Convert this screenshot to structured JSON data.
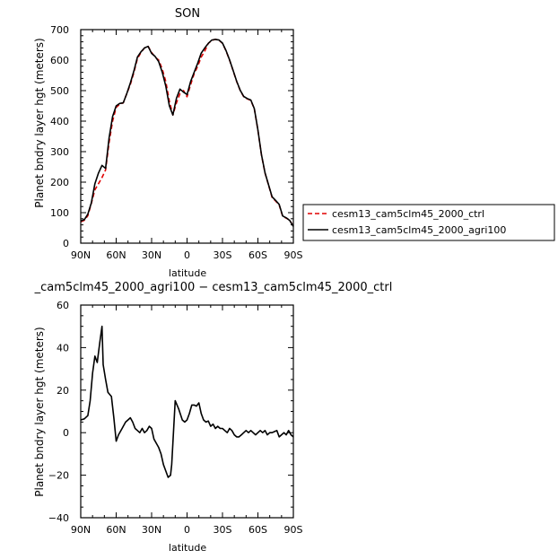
{
  "chart_data": [
    {
      "type": "line",
      "title": "SON",
      "xlabel": "latitude",
      "ylabel": "Planet bndry layer hgt (meters)",
      "xlim": [
        90,
        -90
      ],
      "ylim": [
        0,
        700
      ],
      "x_ticks": [
        90,
        60,
        30,
        0,
        -30,
        -60,
        -90
      ],
      "x_tick_labels": [
        "90N",
        "60N",
        "30N",
        "0",
        "30S",
        "60S",
        "90S"
      ],
      "y_ticks": [
        0,
        100,
        200,
        300,
        400,
        500,
        600,
        700
      ],
      "y_tick_labels": [
        "0",
        "100",
        "200",
        "300",
        "400",
        "500",
        "600",
        "700"
      ],
      "legend_position": "right",
      "series": [
        {
          "name": "cesm13_cam5clm45_2000_ctrl",
          "color": "#e00000",
          "dash": "dashed",
          "x": [
            90,
            87,
            84,
            81,
            78,
            75,
            72,
            69,
            66,
            63,
            60,
            57,
            54,
            51,
            48,
            45,
            42,
            39,
            36,
            33,
            30,
            27,
            24,
            21,
            18,
            15,
            12,
            9,
            6,
            3,
            0,
            -3,
            -6,
            -9,
            -12,
            -15,
            -18,
            -21,
            -24,
            -27,
            -30,
            -33,
            -36,
            -39,
            -42,
            -45,
            -48,
            -51,
            -54,
            -57,
            -60,
            -63,
            -66,
            -69,
            -72,
            -75,
            -78,
            -81,
            -84,
            -87,
            -90
          ],
          "values": [
            70,
            75,
            90,
            130,
            175,
            195,
            215,
            240,
            330,
            400,
            445,
            455,
            460,
            490,
            520,
            560,
            605,
            625,
            640,
            645,
            625,
            610,
            600,
            570,
            530,
            465,
            420,
            460,
            490,
            500,
            480,
            520,
            555,
            580,
            610,
            630,
            655,
            665,
            668,
            665,
            655,
            630,
            600,
            565,
            530,
            500,
            480,
            473,
            468,
            440,
            370,
            290,
            230,
            190,
            150,
            138,
            125,
            88,
            82,
            75,
            55
          ]
        },
        {
          "name": "cesm13_cam5clm45_2000_agri100",
          "color": "#000000",
          "dash": "solid",
          "x": [
            90,
            87,
            84,
            81,
            78,
            75,
            72,
            69,
            66,
            63,
            60,
            57,
            54,
            51,
            48,
            45,
            42,
            39,
            36,
            33,
            30,
            27,
            24,
            21,
            18,
            15,
            12,
            9,
            6,
            3,
            0,
            -3,
            -6,
            -9,
            -12,
            -15,
            -18,
            -21,
            -24,
            -27,
            -30,
            -33,
            -36,
            -39,
            -42,
            -45,
            -48,
            -51,
            -54,
            -57,
            -60,
            -63,
            -66,
            -69,
            -72,
            -75,
            -78,
            -81,
            -84,
            -87,
            -90
          ],
          "values": [
            73,
            77,
            95,
            132,
            195,
            230,
            255,
            245,
            345,
            415,
            450,
            458,
            460,
            490,
            525,
            565,
            610,
            627,
            640,
            645,
            622,
            612,
            595,
            560,
            515,
            450,
            420,
            475,
            505,
            495,
            487,
            530,
            560,
            590,
            623,
            640,
            655,
            666,
            668,
            666,
            656,
            631,
            601,
            566,
            531,
            501,
            481,
            474,
            469,
            441,
            371,
            291,
            231,
            191,
            152,
            140,
            127,
            89,
            83,
            74,
            55
          ]
        }
      ]
    },
    {
      "type": "line",
      "title": "_cam5clm45_2000_agri100 − cesm13_cam5clm45_2000_ctrl",
      "xlabel": "latitude",
      "ylabel": "Planet bndry layer hgt (meters)",
      "xlim": [
        90,
        -90
      ],
      "ylim": [
        -40,
        60
      ],
      "x_ticks": [
        90,
        60,
        30,
        0,
        -30,
        -60,
        -90
      ],
      "x_tick_labels": [
        "90N",
        "60N",
        "30N",
        "0",
        "30S",
        "60S",
        "90S"
      ],
      "y_ticks": [
        -40,
        -20,
        0,
        20,
        40,
        60
      ],
      "y_tick_labels": [
        "−40",
        "−20",
        "0",
        "20",
        "40",
        "60"
      ],
      "series": [
        {
          "color": "#000000",
          "dash": "solid",
          "x": [
            90,
            87,
            84,
            82,
            80,
            78,
            76,
            74,
            72,
            71,
            69,
            67,
            64,
            62,
            60,
            58,
            55,
            52,
            50,
            48,
            46,
            44,
            42,
            40,
            38,
            36,
            34,
            32,
            30,
            28,
            26,
            24,
            22,
            20,
            18,
            16,
            14,
            13,
            12,
            10,
            7,
            4,
            2,
            0,
            -2,
            -4,
            -6,
            -8,
            -10,
            -12,
            -14,
            -16,
            -18,
            -20,
            -22,
            -24,
            -26,
            -28,
            -30,
            -32,
            -34,
            -36,
            -38,
            -40,
            -42,
            -44,
            -46,
            -48,
            -50,
            -52,
            -54,
            -56,
            -58,
            -60,
            -62,
            -64,
            -66,
            -68,
            -70,
            -72,
            -74,
            -76,
            -78,
            -80,
            -82,
            -84,
            -86,
            -88,
            -90
          ],
          "values": [
            6,
            6.5,
            8,
            15,
            28,
            36,
            33,
            42,
            50,
            32,
            25,
            19,
            17,
            7,
            -4,
            -1,
            2,
            5,
            6,
            7,
            5,
            2,
            1,
            0,
            2,
            0,
            1,
            3,
            2,
            -3,
            -5,
            -7,
            -10,
            -15,
            -18,
            -21,
            -20,
            -15,
            -5,
            15,
            11,
            6,
            5,
            6,
            9,
            13,
            13,
            12.5,
            14,
            9,
            6,
            5,
            5.5,
            3,
            4,
            2,
            3,
            2,
            2,
            1,
            0,
            2,
            1,
            -1,
            -2,
            -2,
            -1,
            0,
            1,
            0,
            1,
            0,
            -1,
            0,
            1,
            0,
            1,
            -1,
            0,
            0,
            0.5,
            1,
            -2,
            -1,
            0,
            -1,
            1,
            -1,
            -2
          ]
        }
      ]
    }
  ]
}
